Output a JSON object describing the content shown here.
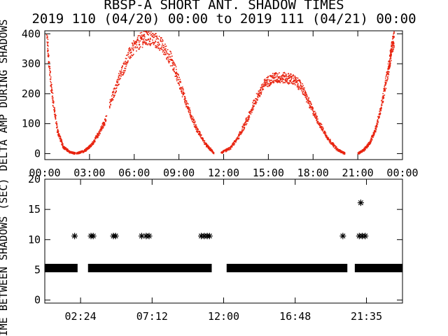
{
  "title": "RBSP-A SHORT ANT. SHADOW TIMES",
  "subtitle": "2019 110 (04/20) 00:00 to 2019 111 (04/21) 00:00",
  "chart_data": [
    {
      "type": "scatter",
      "ylabel": "DELTA AMP DURING SHADOWS",
      "xlim": [
        0,
        24
      ],
      "ylim": [
        -20,
        410
      ],
      "yticks": [
        "0",
        "100",
        "200",
        "300",
        "400"
      ],
      "xtick_labels": [
        "00:00",
        "03:00",
        "06:00",
        "09:00",
        "12:00",
        "15:00",
        "18:00",
        "21:00",
        "00:00"
      ],
      "point_color": "#e8230f",
      "segments": [
        {
          "x": [
            0.1,
            0.4,
            0.8,
            1.2,
            1.6,
            2.0
          ],
          "y": [
            390,
            220,
            80,
            25,
            8,
            2
          ]
        },
        {
          "x": [
            2.1,
            2.6,
            3.1,
            3.6,
            4.1
          ],
          "y": [
            2,
            10,
            30,
            70,
            120
          ]
        },
        {
          "x": [
            4.3,
            5.0,
            5.7,
            6.4,
            7.0,
            7.7,
            8.4,
            9.0
          ],
          "y": [
            160,
            260,
            340,
            380,
            390,
            370,
            320,
            240
          ]
        },
        {
          "x": [
            9.0,
            9.6,
            10.2,
            10.8,
            11.3
          ],
          "y": [
            240,
            150,
            80,
            30,
            4
          ]
        },
        {
          "x": [
            11.8,
            12.4,
            13.0,
            13.6,
            14.2,
            14.8,
            15.4,
            16.0,
            16.6,
            17.2
          ],
          "y": [
            4,
            20,
            60,
            120,
            190,
            240,
            255,
            255,
            250,
            225
          ]
        },
        {
          "x": [
            17.2,
            17.8,
            18.4,
            19.0,
            19.6,
            20.1
          ],
          "y": [
            225,
            160,
            100,
            50,
            15,
            2
          ]
        },
        {
          "x": [
            21.0,
            21.4,
            21.8,
            22.2,
            22.6,
            23.0
          ],
          "y": [
            2,
            15,
            40,
            90,
            170,
            280
          ]
        },
        {
          "x": [
            23.0,
            23.2,
            23.4
          ],
          "y": [
            280,
            340,
            390
          ]
        }
      ]
    },
    {
      "type": "scatter",
      "ylabel": "TIME BETWEEN SHADOWS (SEC)",
      "xlim": [
        0,
        24
      ],
      "ylim": [
        -0.5,
        20
      ],
      "yticks": [
        "0",
        "5",
        "10",
        "15",
        "20"
      ],
      "xtick_labels": [
        "02:24",
        "07:12",
        "12:00",
        "16:48",
        "21:35"
      ],
      "xtick_values": [
        2.4,
        7.2,
        12.0,
        16.8,
        21.583
      ],
      "point_color": "#000000",
      "bands": [
        {
          "x_start": 0.0,
          "x_end": 2.2,
          "y": 5.3
        },
        {
          "x_start": 2.9,
          "x_end": 11.2,
          "y": 5.3
        },
        {
          "x_start": 12.2,
          "x_end": 20.3,
          "y": 5.3
        },
        {
          "x_start": 20.8,
          "x_end": 24.0,
          "y": 5.3
        }
      ],
      "stars": [
        {
          "x": 2.0,
          "y": 10.6
        },
        {
          "x": 3.1,
          "y": 10.6
        },
        {
          "x": 3.25,
          "y": 10.6
        },
        {
          "x": 4.6,
          "y": 10.6
        },
        {
          "x": 4.75,
          "y": 10.6
        },
        {
          "x": 6.5,
          "y": 10.6
        },
        {
          "x": 6.8,
          "y": 10.6
        },
        {
          "x": 7.0,
          "y": 10.6
        },
        {
          "x": 10.5,
          "y": 10.6
        },
        {
          "x": 10.7,
          "y": 10.6
        },
        {
          "x": 10.9,
          "y": 10.6
        },
        {
          "x": 11.05,
          "y": 10.6
        },
        {
          "x": 20.0,
          "y": 10.6
        },
        {
          "x": 21.2,
          "y": 16.1
        },
        {
          "x": 21.1,
          "y": 10.6
        },
        {
          "x": 21.3,
          "y": 10.6
        },
        {
          "x": 21.5,
          "y": 10.6
        }
      ]
    }
  ]
}
